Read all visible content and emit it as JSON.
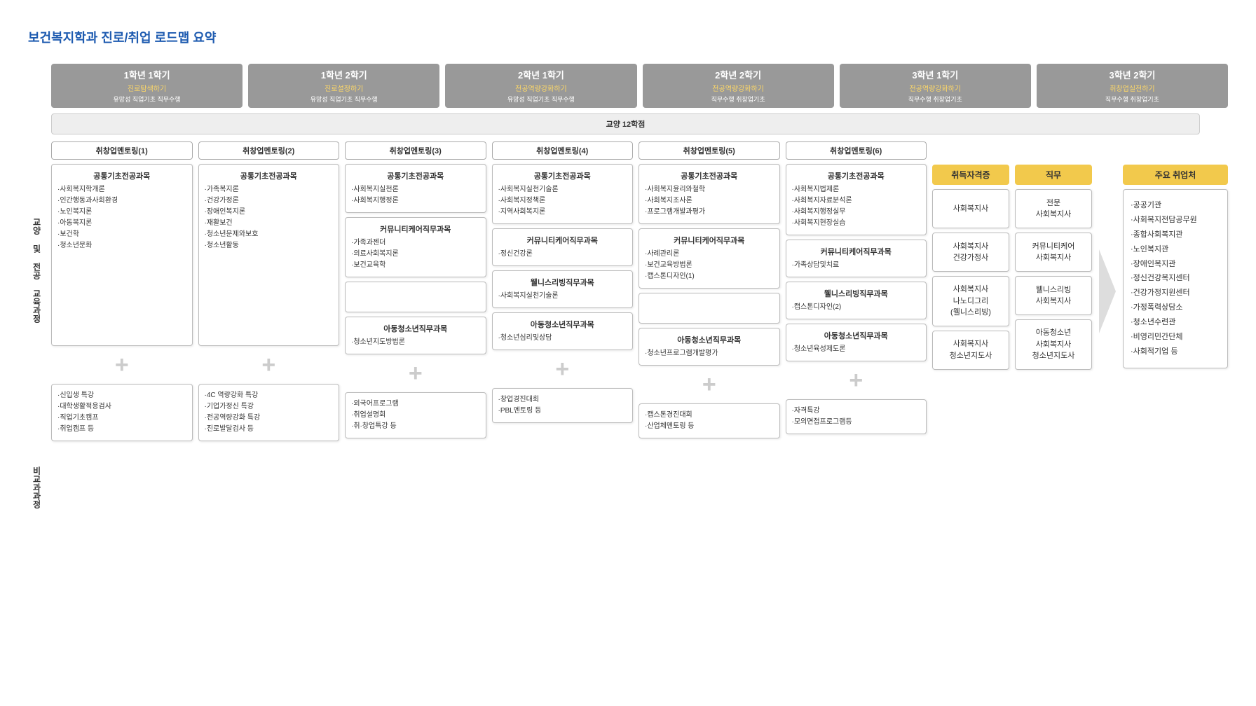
{
  "title": "보건복지학과 진로/취업 로드맵 요약",
  "semesters": [
    {
      "name": "1학년 1학기",
      "sub": "진로탐색하기",
      "detail": "유망성 직업기초 직무수행"
    },
    {
      "name": "1학년 2학기",
      "sub": "진로설정하기",
      "detail": "유망성 직업기초 직무수행"
    },
    {
      "name": "2학년 1학기",
      "sub": "전공역량강화하기",
      "detail": "유망성 직업기초 직무수행"
    },
    {
      "name": "2학년 2학기",
      "sub": "전공역량강화하기",
      "detail": "직무수행 취창업기초"
    },
    {
      "name": "3학년 1학기",
      "sub": "전공역량강화하기",
      "detail": "직무수행 취창업기초"
    },
    {
      "name": "3학년 2학기",
      "sub": "취창업실전하기",
      "detail": "직무수행 취창업기초"
    }
  ],
  "credit": "교양 12학점",
  "sideTop": "교양 및 전공 교육과정",
  "sideBot": "비교과과정",
  "mentoring": [
    "취창업멘토링(1)",
    "취창업멘토링(2)",
    "취창업멘토링(3)",
    "취창업멘토링(4)",
    "취창업멘토링(5)",
    "취창업멘토링(6)"
  ],
  "col1": {
    "common": {
      "t": "공통기초전공과목",
      "items": [
        "·사회복지학개론",
        "·인간행동과사회환경",
        "·노인복지론",
        "·아동복지론",
        "·보건학",
        "·청소년문화"
      ]
    },
    "extra": [
      "·신입생 특강",
      "·대학생활적응검사",
      "·직업기초캠프",
      "·취업캠프 등"
    ]
  },
  "col2": {
    "common": {
      "t": "공통기초전공과목",
      "items": [
        "·가족복지론",
        "·건강가정론",
        "·장애인복지론",
        "·재활보건",
        "·청소년문제와보호",
        "·청소년활동"
      ]
    },
    "extra": [
      "·4C 역량강화 특강",
      "·기업가정신 특강",
      "·전공역량강화 특강",
      "·진로발달검사 등"
    ]
  },
  "col3": {
    "common": {
      "t": "공통기초전공과목",
      "items": [
        "·사회복지실천론",
        "·사회복지행정론"
      ]
    },
    "care": {
      "t": "커뮤니티케어직무과목",
      "items": [
        "·가족과젠더",
        "·의료사회복지론",
        "·보건교육학"
      ]
    },
    "youth": {
      "t": "아동청소년직무과목",
      "items": [
        "·청소년지도방법론"
      ]
    },
    "extra": [
      "·외국어프로그램",
      "·취업설명회",
      "·취·창업특강 등"
    ]
  },
  "col4": {
    "common": {
      "t": "공통기초전공과목",
      "items": [
        "·사회복지실천기술론",
        "·사회복지정책론",
        "·지역사회복지론"
      ]
    },
    "care": {
      "t": "커뮤니티케어직무과목",
      "items": [
        "·정신건강론"
      ]
    },
    "well": {
      "t": "웰니스리빙직무과목",
      "items": [
        "·사회복지실천기술론"
      ]
    },
    "youth": {
      "t": "아동청소년직무과목",
      "items": [
        "·청소년심리및상담"
      ]
    },
    "extra": [
      "·창업경진대회",
      "·PBL멘토링 등"
    ]
  },
  "col5": {
    "common": {
      "t": "공통기초전공과목",
      "items": [
        "·사회복지윤리와철학",
        "·사회복지조사론",
        "·프로그램개발과평가"
      ]
    },
    "care": {
      "t": "커뮤니티케어직무과목",
      "items": [
        "·사례관리론",
        "·보건교육방법론",
        "·캡스톤디자인(1)"
      ]
    },
    "youth": {
      "t": "아동청소년직무과목",
      "items": [
        "·청소년프로그램개발평가"
      ]
    },
    "extra": [
      "·캡스톤경진대회",
      "·산업체멘토링 등"
    ]
  },
  "col6": {
    "common": {
      "t": "공통기초전공과목",
      "items": [
        "·사회복지법제론",
        "·사회복지자료분석론",
        "·사회복지행정실무",
        "·사회복지현장실습"
      ]
    },
    "care": {
      "t": "커뮤니티케어직무과목",
      "items": [
        "·가족상담및치료"
      ]
    },
    "well": {
      "t": "웰니스리빙직무과목",
      "items": [
        "·캡스톤디자인(2)"
      ]
    },
    "youth": {
      "t": "아동청소년직무과목",
      "items": [
        "·청소년육성제도론"
      ]
    },
    "extra": [
      "·자격특강",
      "·모의면접프로그램등"
    ]
  },
  "certHeader": "취득자격증",
  "jobHeader": "직무",
  "placeHeader": "주요 취업처",
  "certs": [
    "사회복지사",
    "사회복지사\n건강가정사",
    "사회복지사\n나노디그리\n(웰니스리빙)",
    "사회복지사\n청소년지도사"
  ],
  "jobs": [
    "전문\n사회복지사",
    "커뮤니티케어\n사회복지사",
    "웰니스리빙\n사회복지사",
    "아동청소년\n사회복지사\n청소년지도사"
  ],
  "places": [
    "·공공기관",
    "·사회복지전담공무원",
    "·종합사회복지관",
    "·노인복지관",
    "·장애인복지관",
    "·정신건강복지센터",
    "·건강가정지원센터",
    "·가정폭력상담소",
    "·청소년수련관",
    "·비영리민간단체",
    "·사회적기업 등"
  ]
}
